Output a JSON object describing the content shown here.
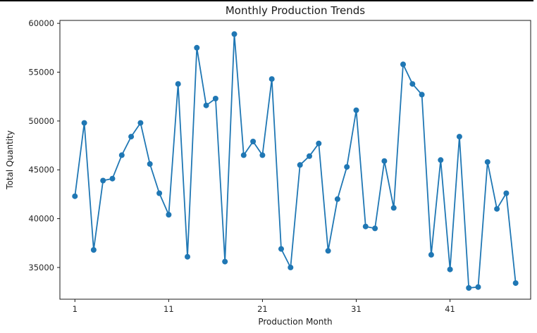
{
  "window": {
    "top_border_color": "#000000"
  },
  "chart_data": {
    "type": "line",
    "title": "Monthly Production Trends",
    "xlabel": "Production Month",
    "ylabel": "Total Quantity",
    "x": [
      1,
      2,
      3,
      4,
      5,
      6,
      7,
      8,
      9,
      10,
      11,
      12,
      13,
      14,
      15,
      16,
      17,
      18,
      19,
      20,
      21,
      22,
      23,
      24,
      25,
      26,
      27,
      28,
      29,
      30,
      31,
      32,
      33,
      34,
      35,
      36,
      37,
      38,
      39,
      40,
      41,
      42,
      43,
      44,
      45,
      46,
      47,
      48
    ],
    "values": [
      42300,
      49800,
      36800,
      43900,
      44100,
      46500,
      48400,
      49800,
      45600,
      42600,
      40400,
      53800,
      36100,
      57500,
      51600,
      52300,
      35600,
      58900,
      46500,
      47900,
      46500,
      54300,
      36900,
      35000,
      45500,
      46400,
      47700,
      36700,
      42000,
      45300,
      51100,
      39200,
      39000,
      45900,
      41100,
      55800,
      53800,
      52700,
      36300,
      46000,
      34800,
      48400,
      32900,
      33000,
      45800,
      41000,
      42600,
      33400
    ],
    "xticks": [
      1,
      11,
      21,
      31,
      41
    ],
    "yticks": [
      35000,
      40000,
      45000,
      50000,
      55000,
      60000
    ],
    "xlim": [
      -0.6,
      49.6
    ],
    "ylim": [
      31750,
      60300
    ],
    "grid": false,
    "legend_position": "none",
    "line_color": "#1f77b4",
    "marker": "circle",
    "marker_color": "#1f77b4",
    "background_color": "#ffffff",
    "axis_color": "#1a1a1a",
    "text_color": "#262626"
  }
}
